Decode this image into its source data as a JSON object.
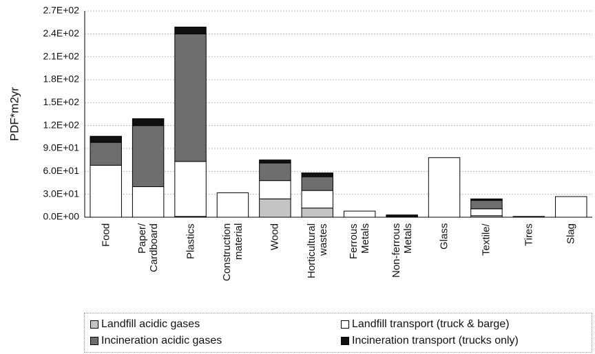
{
  "chart_data": {
    "type": "stacked_bar",
    "y_label": "PDF*m2yr",
    "categories": [
      "Food",
      "Paper/ Cardboard",
      "Plastics",
      "Construction material",
      "Wood",
      "Horticultural wastes",
      "Ferrous Metals",
      "Non-ferrous Metals",
      "Glass",
      "Textile/",
      "Tires",
      "Slag"
    ],
    "series": [
      {
        "name": "Landfill acidic gases",
        "color": "#c4c4c4",
        "values": [
          0,
          0,
          1,
          0,
          24,
          12,
          0,
          0,
          0,
          2,
          0,
          0
        ]
      },
      {
        "name": "Landfill transport (truck & barge)",
        "color": "#ffffff",
        "values": [
          68,
          40,
          72,
          32,
          24,
          23,
          8,
          0,
          78,
          9,
          0,
          27
        ]
      },
      {
        "name": "Incineration acidic gases",
        "color": "#6e6e6e",
        "values": [
          30,
          80,
          167,
          0,
          23,
          18,
          0,
          0,
          0,
          11,
          0,
          0
        ]
      },
      {
        "name": "Incineration transport (trucks only)",
        "color": "#111111",
        "values": [
          8,
          9,
          9,
          0,
          4,
          5,
          0,
          3,
          0,
          2,
          1,
          0
        ]
      }
    ],
    "ylim": [
      0,
      270
    ],
    "yticks": [
      {
        "value": 0,
        "label": "0.0E+00"
      },
      {
        "value": 30,
        "label": "3.0E+01"
      },
      {
        "value": 60,
        "label": "6.0E+01"
      },
      {
        "value": 90,
        "label": "9.0E+01"
      },
      {
        "value": 120,
        "label": "1.2E+02"
      },
      {
        "value": 150,
        "label": "1.5E+02"
      },
      {
        "value": 180,
        "label": "1.8E+02"
      },
      {
        "value": 210,
        "label": "2.1E+02"
      },
      {
        "value": 240,
        "label": "2.4E+02"
      },
      {
        "value": 270,
        "label": "2.7E+02"
      }
    ],
    "grid": true
  }
}
